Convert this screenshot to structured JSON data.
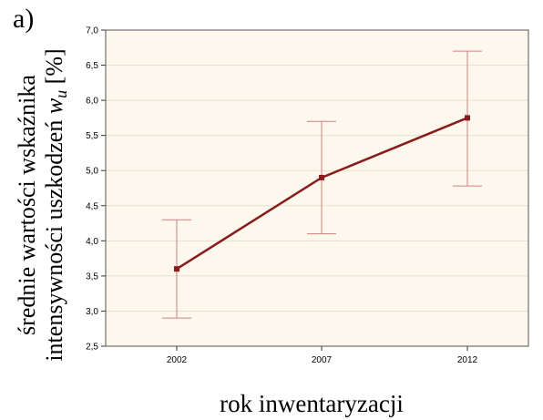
{
  "panel_label": "a)",
  "chart_data": {
    "type": "line",
    "xlabel": "rok inwentaryzacji",
    "ylabel_line1": "średnie wartości wskaźnika",
    "ylabel_line2_prefix": "intensywności uszkodzeń ",
    "ylabel_var": "w",
    "ylabel_sub": "u",
    "ylabel_suffix": " [%]",
    "categories": [
      "2002",
      "2007",
      "2012"
    ],
    "values": [
      3.6,
      4.9,
      5.75
    ],
    "error_low": [
      2.9,
      4.1,
      4.78
    ],
    "error_high": [
      4.3,
      5.7,
      6.7
    ],
    "ylim": [
      2.5,
      7.0
    ],
    "yticks": [
      "2,5",
      "3,0",
      "3,5",
      "4,0",
      "4,5",
      "5,0",
      "5,5",
      "6,0",
      "6,5",
      "7,0"
    ],
    "grid": true,
    "colors": {
      "line": "#8b1a1a",
      "error_bar": "#d08080",
      "plot_background": "#fdf8ee",
      "frame": "#555555"
    }
  }
}
